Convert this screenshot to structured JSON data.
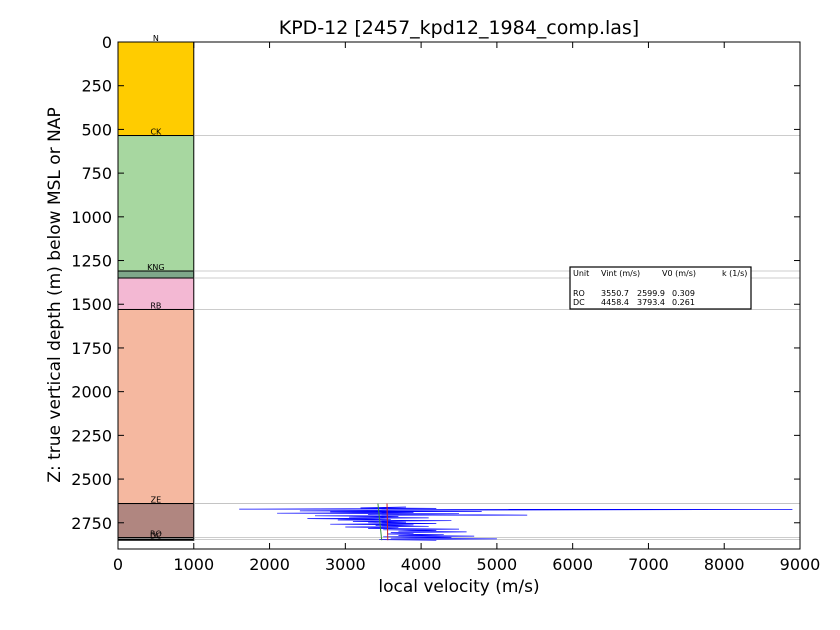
{
  "chart_data": {
    "type": "scatter",
    "title": "KPD-12 [2457_kpd12_1984_comp.las]",
    "xlabel": "local velocity (m/s)",
    "ylabel": "Z: true vertical depth (m) below MSL or NAP",
    "xlim": [
      0,
      9000
    ],
    "ylim": [
      2900,
      0
    ],
    "x_ticks": [
      "0",
      "1000",
      "2000",
      "3000",
      "4000",
      "5000",
      "6000",
      "7000",
      "8000",
      "9000"
    ],
    "y_ticks": [
      "0",
      "250",
      "500",
      "750",
      "1000",
      "1250",
      "1500",
      "1750",
      "2000",
      "2250",
      "2500",
      "2750"
    ],
    "grid": false,
    "lithology_column": {
      "x_range": [
        0,
        1000
      ],
      "units": [
        {
          "label": "N",
          "top": 0,
          "base": 535,
          "color": "#ffcc00"
        },
        {
          "label": "CK",
          "top": 535,
          "base": 1310,
          "color": "#a7d7a0"
        },
        {
          "label": "KNG",
          "top": 1310,
          "base": 1350,
          "color": "#7fa88a"
        },
        {
          "label": "",
          "top": 1350,
          "base": 1530,
          "color": "#f3b8d3"
        },
        {
          "label": "RB",
          "top": 1530,
          "base": 2640,
          "color": "#f5b8a0"
        },
        {
          "label": "ZE",
          "top": 2640,
          "base": 2835,
          "color": "#b08680"
        },
        {
          "label": "RO",
          "top": 2835,
          "base": 2845,
          "color": "#c8c8c8"
        },
        {
          "label": "DC",
          "top": 2845,
          "base": 2850,
          "color": "#888888"
        }
      ]
    },
    "boundaries": [
      535,
      1310,
      1350,
      1530,
      2640,
      2835,
      2845
    ],
    "velocity_log": {
      "color": "#0000ff",
      "points": [
        [
          3800,
          2660
        ],
        [
          3200,
          2665
        ],
        [
          4200,
          2668
        ],
        [
          1600,
          2672
        ],
        [
          8900,
          2674
        ],
        [
          3700,
          2678
        ],
        [
          2400,
          2682
        ],
        [
          4800,
          2685
        ],
        [
          2800,
          2688
        ],
        [
          3900,
          2692
        ],
        [
          2100,
          2695
        ],
        [
          4500,
          2698
        ],
        [
          3300,
          2702
        ],
        [
          5400,
          2706
        ],
        [
          2600,
          2710
        ],
        [
          3700,
          2714
        ],
        [
          3050,
          2718
        ],
        [
          4100,
          2722
        ],
        [
          2500,
          2726
        ],
        [
          3600,
          2730
        ],
        [
          2900,
          2734
        ],
        [
          4400,
          2738
        ],
        [
          3100,
          2742
        ],
        [
          3800,
          2746
        ],
        [
          3300,
          2750
        ],
        [
          4200,
          2754
        ],
        [
          2800,
          2758
        ],
        [
          3900,
          2762
        ],
        [
          3400,
          2766
        ],
        [
          4100,
          2770
        ],
        [
          3000,
          2774
        ],
        [
          3700,
          2778
        ],
        [
          3300,
          2782
        ],
        [
          4500,
          2786
        ],
        [
          3500,
          2790
        ],
        [
          4200,
          2794
        ],
        [
          3700,
          2798
        ],
        [
          4600,
          2802
        ],
        [
          3600,
          2806
        ],
        [
          3900,
          2810
        ],
        [
          3550,
          2814
        ],
        [
          4300,
          2818
        ],
        [
          3700,
          2822
        ],
        [
          4700,
          2826
        ],
        [
          3500,
          2830
        ],
        [
          4400,
          2834
        ],
        [
          3600,
          2838
        ],
        [
          5000,
          2842
        ],
        [
          3450,
          2846
        ],
        [
          4200,
          2850
        ]
      ]
    },
    "fit_lines": [
      {
        "unit": "ZE",
        "color": "#3a8a3a",
        "points": [
          [
            3430,
            2640
          ],
          [
            3480,
            2850
          ]
        ]
      },
      {
        "unit": "ZE",
        "color": "#cc2222",
        "points": [
          [
            3550,
            2640
          ],
          [
            3560,
            2850
          ]
        ]
      }
    ],
    "table": {
      "header": {
        "unit": "Unit",
        "vint": "Vint (m/s)",
        "v0": "V0 (m/s)",
        "k": "k (1/s)"
      },
      "rows": [
        {
          "unit": "RO",
          "vint": "3550.7",
          "v0": "2599.9",
          "k": "0.309"
        },
        {
          "unit": "DC",
          "vint": "4458.4",
          "v0": "3793.4",
          "k": "0.261"
        }
      ]
    }
  }
}
